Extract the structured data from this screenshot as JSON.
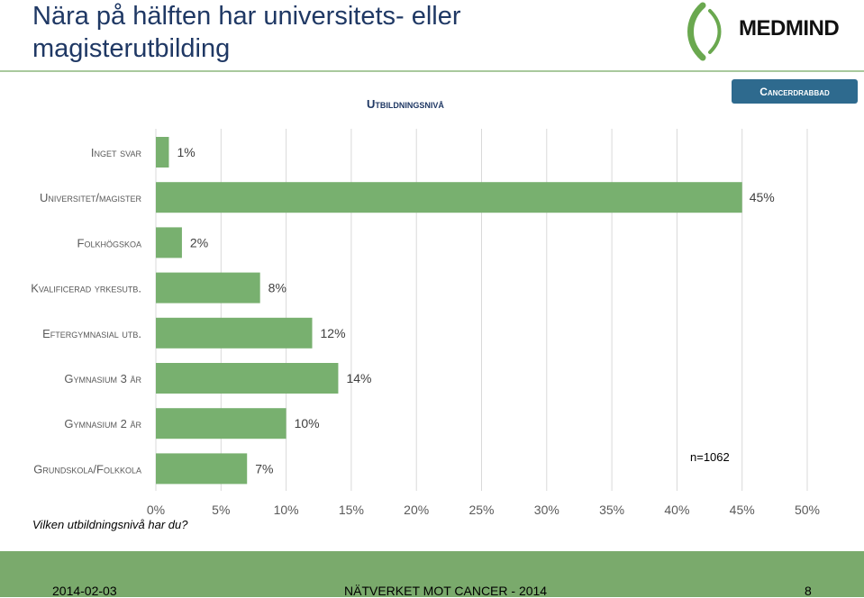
{
  "title": "Nära på hälften har universitets- eller magisterutbilding",
  "logo_text": "MEDMIND",
  "chart_heading": "Utbildningsnivå",
  "tag_label": "Cancerdrabbad",
  "question": "Vilken utbildningsnivå har du?",
  "sample_note": "n=1062",
  "footer": {
    "date": "2014-02-03",
    "center": "NÄTVERKET MOT CANCER - 2014",
    "page": "8"
  },
  "colors": {
    "bar": "#78b06f",
    "title": "#1f3864",
    "tag": "#2e6a8e",
    "footer": "#7aaa6c"
  },
  "chart_data": {
    "type": "bar",
    "orientation": "horizontal",
    "categories": [
      "Inget svar",
      "Universitet/magister",
      "Folkhögskoa",
      "Kvalificerad yrkesutb.",
      "Eftergymnasial utb.",
      "Gymnasium 3 år",
      "Gymnasium 2 år",
      "Grundskola/Folkkola"
    ],
    "values": [
      1,
      45,
      2,
      8,
      12,
      14,
      10,
      7
    ],
    "value_labels": [
      "1%",
      "45%",
      "2%",
      "8%",
      "12%",
      "14%",
      "10%",
      "7%"
    ],
    "xlim": [
      0,
      50
    ],
    "xticks": [
      "0%",
      "5%",
      "10%",
      "15%",
      "20%",
      "25%",
      "30%",
      "35%",
      "40%",
      "45%",
      "50%"
    ],
    "grid": true
  }
}
